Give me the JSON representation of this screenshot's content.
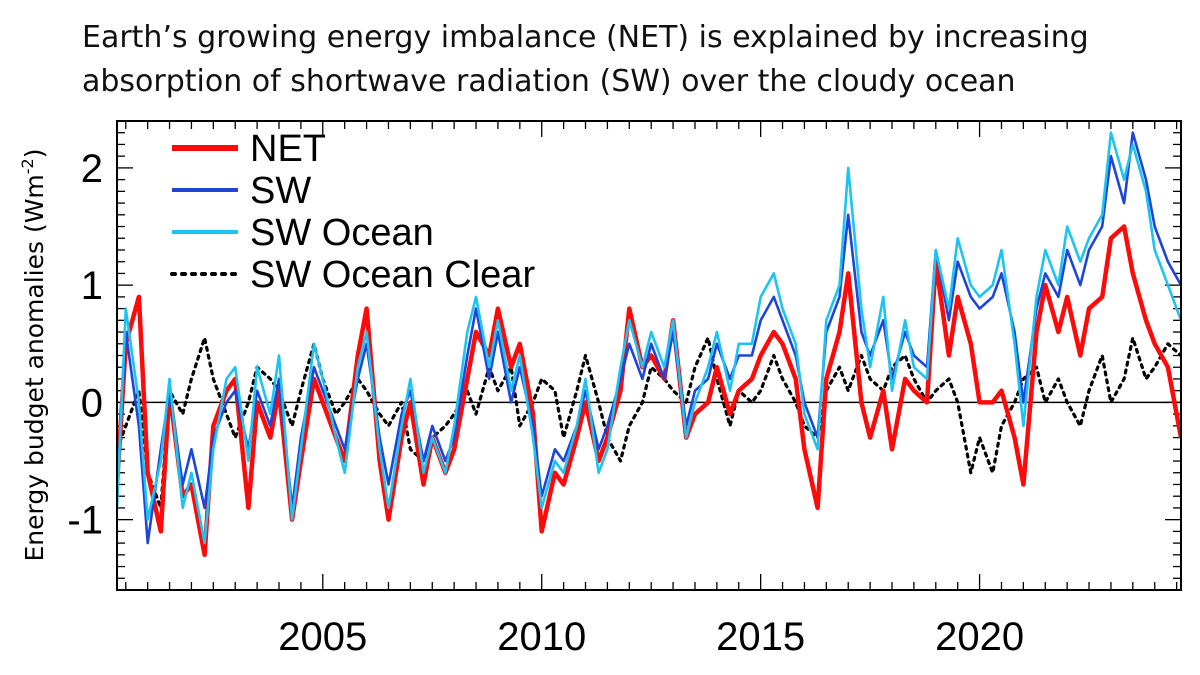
{
  "title": {
    "line1": "Earth’s growing energy imbalance (NET) is explained by increasing",
    "line2": "absorption of shortwave radiation (SW) over the cloudy ocean"
  },
  "chart_data": {
    "type": "line",
    "title": "Earth’s growing energy imbalance (NET) is explained by increasing absorption of shortwave radiation (SW) over the cloudy ocean",
    "xlabel": "",
    "ylabel": "Energy budget anomalies (Wm",
    "ylabel_sup": "-2",
    "ylabel_close": ")",
    "xlim": [
      2000.3,
      2024.6
    ],
    "ylim": [
      -1.6,
      2.4
    ],
    "xticks": [
      2005,
      2010,
      2015,
      2020
    ],
    "xtick_labels": [
      "2005",
      "2010",
      "2015",
      "2020"
    ],
    "yticks": [
      -1,
      0,
      1,
      2
    ],
    "ytick_labels": [
      "-1",
      "0",
      "1",
      "2"
    ],
    "zero_line": true,
    "legend_position": "top-left",
    "series": [
      {
        "name": "NET",
        "color": "#ff0a0a",
        "style": "solid",
        "width": "thick",
        "x": [
          2000.3,
          2000.5,
          2000.8,
          2001.0,
          2001.3,
          2001.5,
          2001.8,
          2002.0,
          2002.3,
          2002.5,
          2002.8,
          2003.0,
          2003.3,
          2003.5,
          2003.8,
          2004.0,
          2004.3,
          2004.5,
          2004.8,
          2005.0,
          2005.3,
          2005.5,
          2005.8,
          2006.0,
          2006.3,
          2006.5,
          2006.8,
          2007.0,
          2007.3,
          2007.5,
          2007.8,
          2008.0,
          2008.3,
          2008.5,
          2008.8,
          2009.0,
          2009.3,
          2009.5,
          2009.8,
          2010.0,
          2010.3,
          2010.5,
          2010.8,
          2011.0,
          2011.3,
          2011.5,
          2011.8,
          2012.0,
          2012.3,
          2012.5,
          2012.8,
          2013.0,
          2013.3,
          2013.5,
          2013.8,
          2014.0,
          2014.3,
          2014.5,
          2014.8,
          2015.0,
          2015.3,
          2015.5,
          2015.8,
          2016.0,
          2016.3,
          2016.5,
          2016.8,
          2017.0,
          2017.3,
          2017.5,
          2017.8,
          2018.0,
          2018.3,
          2018.5,
          2018.8,
          2019.0,
          2019.3,
          2019.5,
          2019.8,
          2020.0,
          2020.3,
          2020.5,
          2020.8,
          2021.0,
          2021.3,
          2021.5,
          2021.8,
          2022.0,
          2022.3,
          2022.5,
          2022.8,
          2023.0,
          2023.3,
          2023.5,
          2023.8,
          2024.0,
          2024.3,
          2024.6
        ],
        "values": [
          -0.7,
          0.5,
          0.9,
          -0.6,
          -1.1,
          0.1,
          -0.8,
          -0.7,
          -1.3,
          -0.2,
          0.1,
          0.2,
          -0.9,
          0.0,
          -0.3,
          0.1,
          -1.0,
          -0.5,
          0.2,
          0.0,
          -0.3,
          -0.5,
          0.4,
          0.8,
          -0.5,
          -1.0,
          -0.3,
          0.0,
          -0.7,
          -0.3,
          -0.6,
          -0.4,
          0.2,
          0.6,
          0.4,
          0.8,
          0.3,
          0.5,
          -0.1,
          -1.1,
          -0.6,
          -0.7,
          -0.3,
          0.0,
          -0.5,
          -0.3,
          0.1,
          0.8,
          0.3,
          0.4,
          0.2,
          0.7,
          -0.3,
          -0.1,
          0.0,
          0.3,
          -0.1,
          0.1,
          0.2,
          0.4,
          0.6,
          0.5,
          0.2,
          -0.4,
          -0.9,
          0.2,
          0.6,
          1.1,
          0.0,
          -0.3,
          0.1,
          -0.4,
          0.2,
          0.1,
          0.0,
          1.2,
          0.4,
          0.9,
          0.5,
          0.0,
          0.0,
          0.1,
          -0.3,
          -0.7,
          0.6,
          1.0,
          0.6,
          0.9,
          0.4,
          0.8,
          0.9,
          1.4,
          1.5,
          1.1,
          0.7,
          0.5,
          0.3,
          -0.3
        ]
      },
      {
        "name": "SW",
        "color": "#1e45d8",
        "style": "solid",
        "width": "medium",
        "x": [
          2000.3,
          2000.5,
          2000.8,
          2001.0,
          2001.3,
          2001.5,
          2001.8,
          2002.0,
          2002.3,
          2002.5,
          2002.8,
          2003.0,
          2003.3,
          2003.5,
          2003.8,
          2004.0,
          2004.3,
          2004.5,
          2004.8,
          2005.0,
          2005.3,
          2005.5,
          2005.8,
          2006.0,
          2006.3,
          2006.5,
          2006.8,
          2007.0,
          2007.3,
          2007.5,
          2007.8,
          2008.0,
          2008.3,
          2008.5,
          2008.8,
          2009.0,
          2009.3,
          2009.5,
          2009.8,
          2010.0,
          2010.3,
          2010.5,
          2010.8,
          2011.0,
          2011.3,
          2011.5,
          2011.8,
          2012.0,
          2012.3,
          2012.5,
          2012.8,
          2013.0,
          2013.3,
          2013.5,
          2013.8,
          2014.0,
          2014.3,
          2014.5,
          2014.8,
          2015.0,
          2015.3,
          2015.5,
          2015.8,
          2016.0,
          2016.3,
          2016.5,
          2016.8,
          2017.0,
          2017.3,
          2017.5,
          2017.8,
          2018.0,
          2018.3,
          2018.5,
          2018.8,
          2019.0,
          2019.3,
          2019.5,
          2019.8,
          2020.0,
          2020.3,
          2020.5,
          2020.8,
          2021.0,
          2021.3,
          2021.5,
          2021.8,
          2022.0,
          2022.3,
          2022.5,
          2022.8,
          2023.0,
          2023.3,
          2023.5,
          2023.8,
          2024.0,
          2024.3,
          2024.6
        ],
        "values": [
          -0.8,
          0.6,
          -0.2,
          -1.2,
          -0.4,
          0.1,
          -0.7,
          -0.4,
          -0.9,
          -0.3,
          0.0,
          0.1,
          -0.4,
          0.1,
          -0.2,
          0.2,
          -0.9,
          -0.3,
          0.3,
          0.1,
          -0.2,
          -0.4,
          0.2,
          0.5,
          -0.3,
          -0.7,
          -0.1,
          0.1,
          -0.5,
          -0.2,
          -0.5,
          -0.3,
          0.4,
          0.8,
          0.2,
          0.6,
          0.0,
          0.3,
          -0.2,
          -0.8,
          -0.4,
          -0.5,
          -0.2,
          0.1,
          -0.4,
          -0.2,
          0.2,
          0.5,
          0.2,
          0.5,
          0.2,
          0.6,
          -0.2,
          0.1,
          0.2,
          0.5,
          0.2,
          0.4,
          0.4,
          0.7,
          0.9,
          0.7,
          0.4,
          0.0,
          -0.3,
          0.6,
          0.9,
          1.6,
          0.6,
          0.4,
          0.7,
          0.2,
          0.6,
          0.4,
          0.3,
          1.3,
          0.7,
          1.2,
          0.9,
          0.8,
          0.9,
          1.1,
          0.6,
          0.0,
          0.8,
          1.1,
          0.9,
          1.3,
          1.0,
          1.3,
          1.5,
          2.1,
          1.7,
          2.3,
          1.9,
          1.5,
          1.2,
          1.0
        ]
      },
      {
        "name": "SW Ocean",
        "color": "#1ec4f0",
        "style": "solid",
        "width": "medium",
        "x": [
          2000.3,
          2000.5,
          2000.8,
          2001.0,
          2001.3,
          2001.5,
          2001.8,
          2002.0,
          2002.3,
          2002.5,
          2002.8,
          2003.0,
          2003.3,
          2003.5,
          2003.8,
          2004.0,
          2004.3,
          2004.5,
          2004.8,
          2005.0,
          2005.3,
          2005.5,
          2005.8,
          2006.0,
          2006.3,
          2006.5,
          2006.8,
          2007.0,
          2007.3,
          2007.5,
          2007.8,
          2008.0,
          2008.3,
          2008.5,
          2008.8,
          2009.0,
          2009.3,
          2009.5,
          2009.8,
          2010.0,
          2010.3,
          2010.5,
          2010.8,
          2011.0,
          2011.3,
          2011.5,
          2011.8,
          2012.0,
          2012.3,
          2012.5,
          2012.8,
          2013.0,
          2013.3,
          2013.5,
          2013.8,
          2014.0,
          2014.3,
          2014.5,
          2014.8,
          2015.0,
          2015.3,
          2015.5,
          2015.8,
          2016.0,
          2016.3,
          2016.5,
          2016.8,
          2017.0,
          2017.3,
          2017.5,
          2017.8,
          2018.0,
          2018.3,
          2018.5,
          2018.8,
          2019.0,
          2019.3,
          2019.5,
          2019.8,
          2020.0,
          2020.3,
          2020.5,
          2020.8,
          2021.0,
          2021.3,
          2021.5,
          2021.8,
          2022.0,
          2022.3,
          2022.5,
          2022.8,
          2023.0,
          2023.3,
          2023.5,
          2023.8,
          2024.0,
          2024.3,
          2024.6
        ],
        "values": [
          -0.9,
          0.8,
          0.0,
          -1.0,
          -0.5,
          0.2,
          -0.9,
          -0.6,
          -1.2,
          -0.4,
          0.2,
          0.3,
          -0.5,
          0.3,
          -0.1,
          0.4,
          -1.0,
          -0.4,
          0.5,
          0.2,
          -0.3,
          -0.6,
          0.3,
          0.6,
          -0.4,
          -0.9,
          -0.2,
          0.2,
          -0.6,
          -0.3,
          -0.6,
          -0.2,
          0.6,
          0.9,
          0.3,
          0.7,
          0.1,
          0.4,
          -0.3,
          -0.9,
          -0.5,
          -0.6,
          -0.2,
          0.2,
          -0.6,
          -0.4,
          0.3,
          0.7,
          0.3,
          0.6,
          0.3,
          0.7,
          -0.3,
          0.0,
          0.3,
          0.6,
          0.1,
          0.5,
          0.5,
          0.9,
          1.1,
          0.8,
          0.5,
          -0.1,
          -0.4,
          0.7,
          1.0,
          2.0,
          0.8,
          0.3,
          0.9,
          0.1,
          0.7,
          0.3,
          0.2,
          1.3,
          0.8,
          1.4,
          1.0,
          0.9,
          1.0,
          1.3,
          0.5,
          -0.2,
          0.9,
          1.3,
          1.0,
          1.5,
          1.2,
          1.4,
          1.6,
          2.3,
          1.9,
          2.2,
          1.8,
          1.3,
          1.0,
          0.7
        ]
      },
      {
        "name": "SW Ocean Clear",
        "color": "#000000",
        "style": "dotted",
        "width": "medium",
        "x": [
          2000.3,
          2000.5,
          2000.8,
          2001.0,
          2001.3,
          2001.5,
          2001.8,
          2002.0,
          2002.3,
          2002.5,
          2002.8,
          2003.0,
          2003.3,
          2003.5,
          2003.8,
          2004.0,
          2004.3,
          2004.5,
          2004.8,
          2005.0,
          2005.3,
          2005.5,
          2005.8,
          2006.0,
          2006.3,
          2006.5,
          2006.8,
          2007.0,
          2007.3,
          2007.5,
          2007.8,
          2008.0,
          2008.3,
          2008.5,
          2008.8,
          2009.0,
          2009.3,
          2009.5,
          2009.8,
          2010.0,
          2010.3,
          2010.5,
          2010.8,
          2011.0,
          2011.3,
          2011.5,
          2011.8,
          2012.0,
          2012.3,
          2012.5,
          2012.8,
          2013.0,
          2013.3,
          2013.5,
          2013.8,
          2014.0,
          2014.3,
          2014.5,
          2014.8,
          2015.0,
          2015.3,
          2015.5,
          2015.8,
          2016.0,
          2016.3,
          2016.5,
          2016.8,
          2017.0,
          2017.3,
          2017.5,
          2017.8,
          2018.0,
          2018.3,
          2018.5,
          2018.8,
          2019.0,
          2019.3,
          2019.5,
          2019.8,
          2020.0,
          2020.3,
          2020.5,
          2020.8,
          2021.0,
          2021.3,
          2021.5,
          2021.8,
          2022.0,
          2022.3,
          2022.5,
          2022.8,
          2023.0,
          2023.3,
          2023.5,
          2023.8,
          2024.0,
          2024.3,
          2024.6
        ],
        "values": [
          -0.4,
          -0.2,
          0.1,
          -0.6,
          -0.9,
          0.1,
          -0.1,
          0.2,
          0.55,
          0.2,
          -0.1,
          -0.3,
          0.0,
          0.3,
          0.2,
          0.1,
          -0.2,
          0.1,
          0.5,
          0.2,
          -0.1,
          0.0,
          0.2,
          0.1,
          -0.1,
          -0.2,
          0.0,
          -0.4,
          -0.5,
          -0.3,
          -0.2,
          -0.1,
          0.1,
          -0.1,
          0.3,
          0.1,
          0.3,
          -0.2,
          0.0,
          0.2,
          0.1,
          -0.3,
          0.1,
          0.4,
          0.0,
          -0.3,
          -0.5,
          -0.2,
          0.0,
          0.3,
          0.2,
          0.1,
          0.0,
          0.3,
          0.55,
          0.2,
          -0.2,
          0.1,
          0.0,
          0.1,
          0.4,
          0.2,
          0.0,
          -0.2,
          -0.3,
          0.1,
          0.3,
          0.1,
          0.4,
          0.2,
          0.1,
          0.3,
          0.4,
          0.2,
          0.0,
          0.1,
          0.2,
          0.0,
          -0.6,
          -0.3,
          -0.6,
          -0.2,
          0.0,
          0.2,
          0.3,
          0.0,
          0.2,
          0.0,
          -0.2,
          0.1,
          0.4,
          0.0,
          0.2,
          0.55,
          0.2,
          0.3,
          0.5,
          0.4
        ]
      }
    ]
  }
}
